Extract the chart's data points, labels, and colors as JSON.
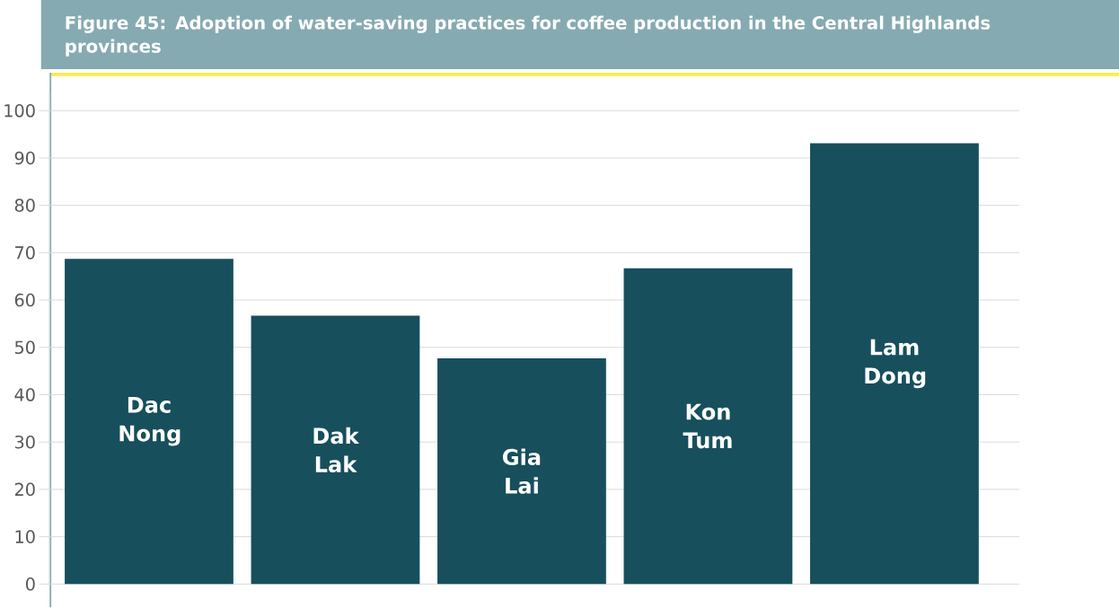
{
  "chart_data": {
    "type": "bar",
    "title": "Figure 45: Adoption of water-saving practices for coffee production in the Central Highlands provinces",
    "categories": [
      "Dac Nong",
      "Dak Lak",
      "Gia Lai",
      "Kon Tum",
      "Lam Dong"
    ],
    "values": [
      68.7,
      56.7,
      47.7,
      66.7,
      93.1
    ],
    "color": "#174f5c",
    "ylim": [
      0,
      104
    ],
    "yticks": [
      0,
      10,
      20,
      30,
      40,
      50,
      60,
      70,
      80,
      90,
      100
    ],
    "grid": "y"
  }
}
